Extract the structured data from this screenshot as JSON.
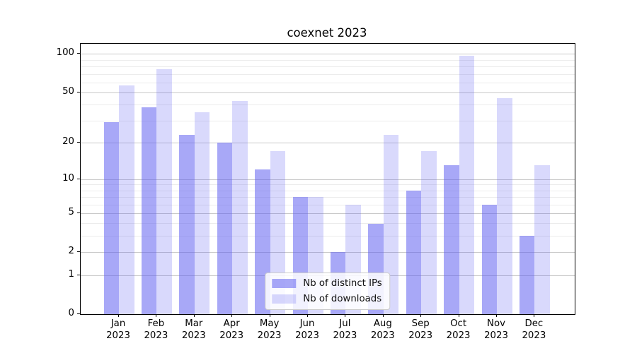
{
  "title": "coexnet 2023",
  "chart_data": {
    "type": "bar",
    "title": "coexnet 2023",
    "categories": [
      "Jan",
      "Feb",
      "Mar",
      "Apr",
      "May",
      "Jun",
      "Jul",
      "Aug",
      "Sep",
      "Oct",
      "Nov",
      "Dec"
    ],
    "category_year": "2023",
    "series": [
      {
        "name": "Nb of distinct IPs",
        "color": "rgba(90,90,240,0.53)",
        "values": [
          29,
          38,
          23,
          20,
          12,
          7,
          2,
          4,
          8,
          13,
          6,
          3
        ]
      },
      {
        "name": "Nb of downloads",
        "color": "rgba(90,90,240,0.23)",
        "values": [
          57,
          76,
          35,
          43,
          17,
          7,
          6,
          23,
          17,
          97,
          45,
          13
        ]
      }
    ],
    "y_axis": {
      "scale": "log1p",
      "major_ticks": [
        100,
        50,
        20,
        10,
        5,
        2,
        1,
        0
      ],
      "minor_ticks": [
        3,
        4,
        6,
        7,
        8,
        9,
        30,
        40,
        60,
        70,
        80,
        90
      ],
      "ylim": [
        0,
        120
      ]
    },
    "x_axis": {
      "tick_format": "two-line month over year"
    },
    "legend": {
      "position": "lower center"
    },
    "grid": true,
    "colors": {
      "grid_major": "#c9c9c9",
      "grid_minor": "#ececec",
      "spine": "#000000",
      "text": "#000000",
      "legend_border": "#cccccc"
    }
  }
}
